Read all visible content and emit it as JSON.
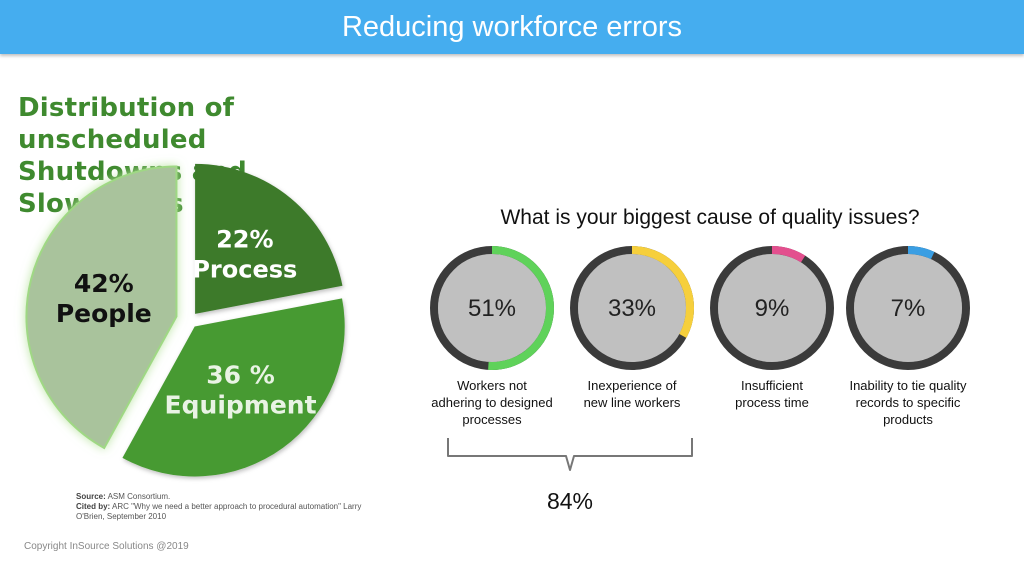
{
  "header": {
    "title": "Reducing workforce errors"
  },
  "colors": {
    "header_bg": "#45adef",
    "title_green": "#3f8a2f",
    "people": "#a9c39c",
    "process": "#3c7a29",
    "equipment": "#479a30",
    "donut_track": "#3b3b3b",
    "donut_fill": "#c0c0c0"
  },
  "chart_data": [
    {
      "type": "pie",
      "title_lines": [
        "Distribution of unscheduled",
        "Shutdowns and Slowdowns"
      ],
      "slices": [
        {
          "value_label": "22%",
          "name": "Process",
          "value": 22,
          "color": "#3c7a29",
          "text_color": "#ffffff"
        },
        {
          "value_label": "36 %",
          "name": "Equipment",
          "value": 36,
          "color": "#479a30",
          "text_color": "#e9f3e4"
        },
        {
          "value_label": "42%",
          "name": "People",
          "value": 42,
          "color": "#a9c39c",
          "text_color": "#111111"
        }
      ]
    },
    {
      "type": "donut",
      "title": "What is your biggest cause of quality issues?",
      "items": [
        {
          "value": 51,
          "label": "51%",
          "caption": [
            "Workers not",
            "adhering to designed",
            "processes"
          ],
          "color": "#5fd25a"
        },
        {
          "value": 33,
          "label": "33%",
          "caption": [
            "Inexperience of",
            "new line workers"
          ],
          "color": "#f6cf3c"
        },
        {
          "value": 9,
          "label": "9%",
          "caption": [
            "Insufficient",
            "process time"
          ],
          "color": "#e34f8e"
        },
        {
          "value": 7,
          "label": "7%",
          "caption": [
            "Inability to tie quality",
            "records to specific",
            "products"
          ],
          "color": "#3a9ee3"
        }
      ],
      "group_total": "84%"
    }
  ],
  "source": {
    "source_label": "Source:",
    "source_text": "ASM Consortium.",
    "cited_label": "Cited by:",
    "cited_text": "ARC \"Why we need a better approach to procedural automation\" Larry O'Brien, September 2010"
  },
  "copyright": "Copyright InSource Solutions @2019"
}
